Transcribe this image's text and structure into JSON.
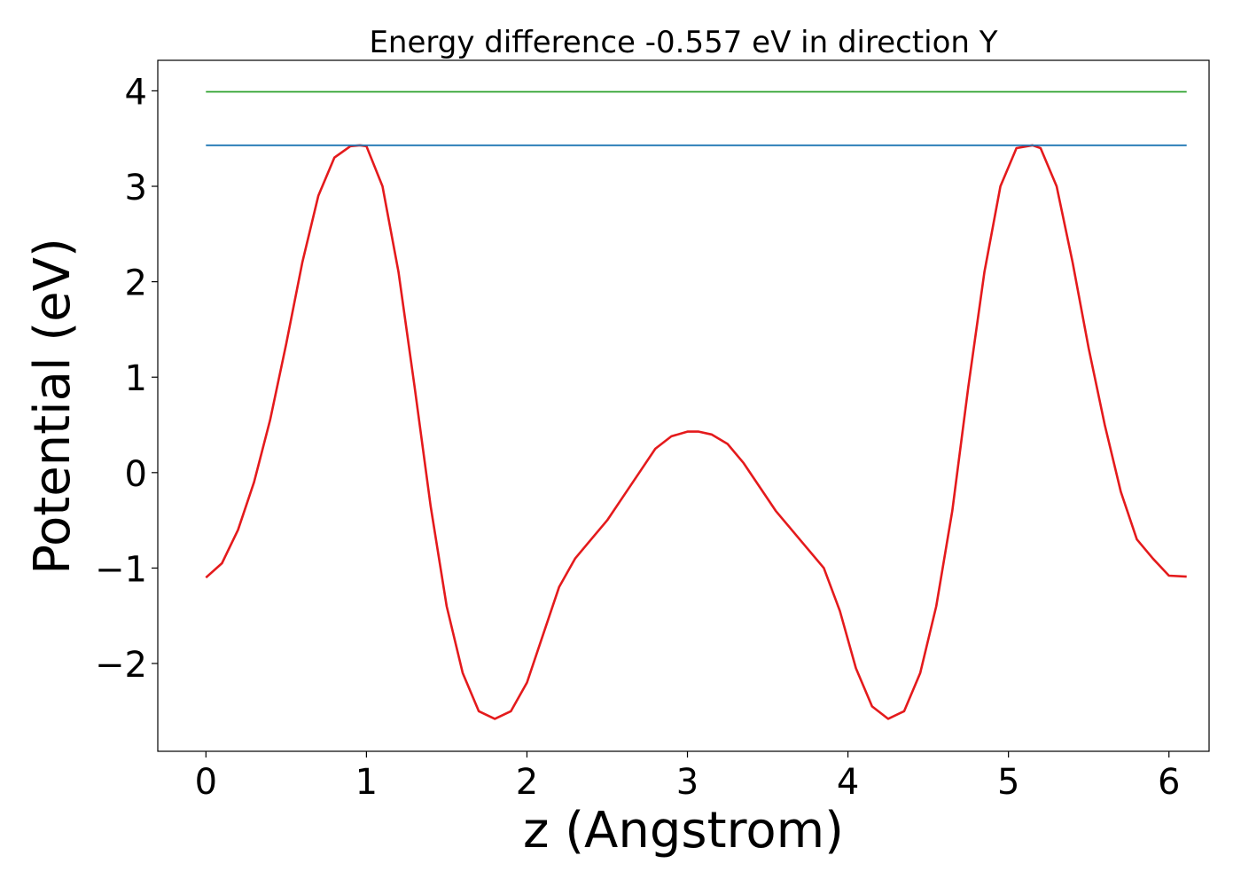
{
  "chart_data": {
    "type": "line",
    "title": "Energy difference -0.557 eV in direction Y",
    "xlabel": "z (Angstrom)",
    "ylabel": "Potential (eV)",
    "xlim": [
      -0.3,
      6.25
    ],
    "ylim": [
      -2.92,
      4.32
    ],
    "xticks": [
      0,
      1,
      2,
      3,
      4,
      5,
      6
    ],
    "xtick_labels": [
      "0",
      "1",
      "2",
      "3",
      "4",
      "5",
      "6"
    ],
    "yticks": [
      -2,
      -1,
      0,
      1,
      2,
      3,
      4
    ],
    "ytick_labels": [
      "−2",
      "−1",
      "0",
      "1",
      "2",
      "3",
      "4"
    ],
    "grid": false,
    "series": [
      {
        "color": "#e41a1c",
        "x": [
          0,
          0.1,
          0.2,
          0.3,
          0.4,
          0.5,
          0.6,
          0.7,
          0.8,
          0.9,
          0.96,
          1.0,
          1.1,
          1.2,
          1.3,
          1.4,
          1.5,
          1.6,
          1.7,
          1.8,
          1.9,
          2.0,
          2.1,
          2.2,
          2.3,
          2.4,
          2.5,
          2.6,
          2.7,
          2.8,
          2.9,
          3.0,
          3.07,
          3.15,
          3.25,
          3.35,
          3.45,
          3.55,
          3.65,
          3.75,
          3.85,
          3.95,
          4.05,
          4.15,
          4.25,
          4.35,
          4.45,
          4.55,
          4.65,
          4.75,
          4.85,
          4.95,
          5.05,
          5.15,
          5.2,
          5.3,
          5.4,
          5.5,
          5.6,
          5.7,
          5.8,
          5.9,
          6.0,
          6.11
        ],
        "y": [
          -1.1,
          -0.95,
          -0.6,
          -0.1,
          0.55,
          1.35,
          2.2,
          2.9,
          3.3,
          3.42,
          3.43,
          3.42,
          3.0,
          2.1,
          0.9,
          -0.35,
          -1.4,
          -2.1,
          -2.5,
          -2.58,
          -2.5,
          -2.2,
          -1.7,
          -1.2,
          -0.9,
          -0.7,
          -0.5,
          -0.25,
          0.0,
          0.25,
          0.38,
          0.43,
          0.43,
          0.4,
          0.3,
          0.1,
          -0.15,
          -0.4,
          -0.6,
          -0.8,
          -1.0,
          -1.45,
          -2.05,
          -2.45,
          -2.58,
          -2.5,
          -2.1,
          -1.4,
          -0.4,
          0.9,
          2.1,
          3.0,
          3.4,
          3.43,
          3.4,
          3.0,
          2.2,
          1.3,
          0.5,
          -0.2,
          -0.7,
          -0.9,
          -1.08,
          -1.09
        ]
      },
      {
        "color": "#1f77b4",
        "x": [
          0,
          6.11
        ],
        "y": [
          3.43,
          3.43
        ]
      },
      {
        "color": "#2ca02c",
        "x": [
          0,
          6.11
        ],
        "y": [
          3.99,
          3.99
        ]
      }
    ]
  }
}
